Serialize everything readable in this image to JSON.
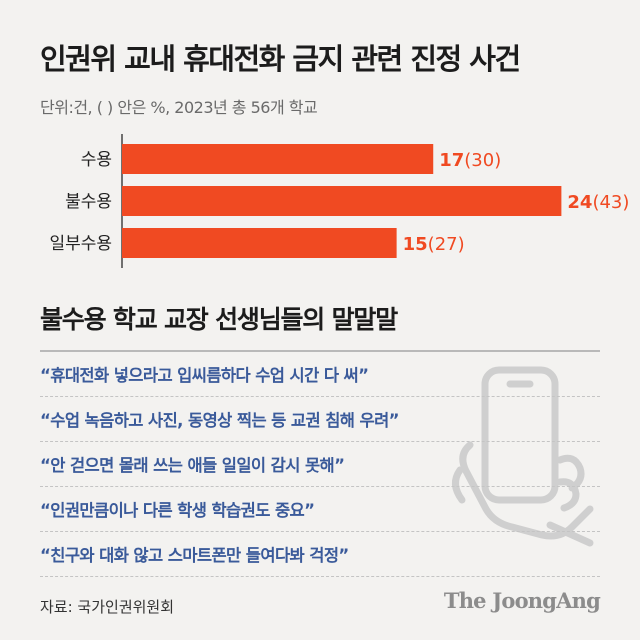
{
  "header": {
    "title": "인권위 교내 휴대전화 금지 관련 진정 사건",
    "unit_note": "단위:건, ( ) 안은 %, 2023년 총 56개 학교"
  },
  "chart_data": {
    "type": "bar",
    "orientation": "horizontal",
    "categories": [
      "수용",
      "불수용",
      "일부수용"
    ],
    "values": [
      17,
      24,
      15
    ],
    "percentages": [
      30,
      43,
      27
    ],
    "value_labels": [
      "17",
      "24",
      "15"
    ],
    "percent_labels": [
      "(30)",
      "(43)",
      "(27)"
    ],
    "bar_color": "#f04a22",
    "xlim": [
      0,
      26
    ]
  },
  "section": {
    "title": "불수용 학교 교장 선생님들의 말말말",
    "quote_color": "#3a5a9a",
    "quotes": [
      "“휴대전화 넣으라고 입씨름하다 수업 시간 다 써”",
      "“수업 녹음하고 사진, 동영상 찍는 등 교권 침해 우려”",
      "“안 걷으면 몰래 쓰는 애들 일일이 감시 못해”",
      "“인권만큼이나 다른 학생 학습권도 중요”",
      "“친구와 대화 않고 스마트폰만 들여다봐 걱정”"
    ]
  },
  "footer": {
    "source": "자료: 국가인권위원회",
    "logo": "The JoongAng"
  }
}
